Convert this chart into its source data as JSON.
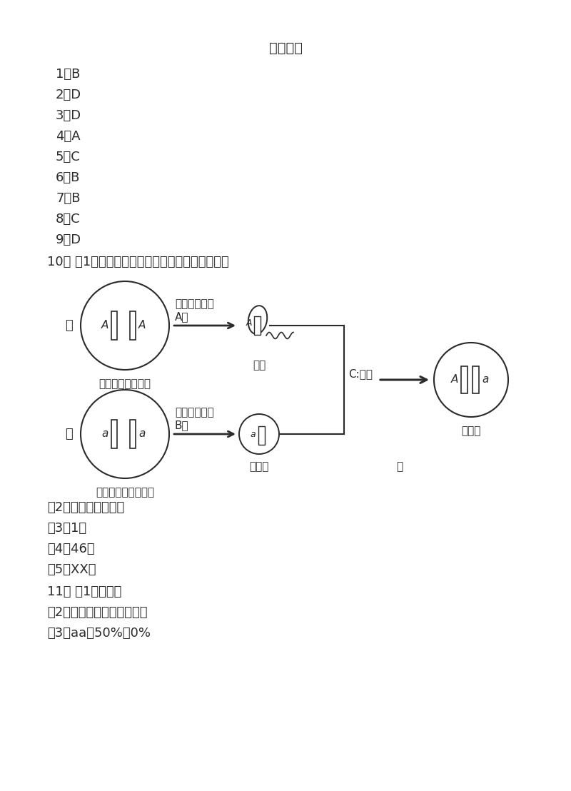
{
  "title": "参考答案",
  "answers_1_9": [
    "1．B",
    "2．D",
    "3．D",
    "4．A",
    "5．C",
    "6．B",
    "7．B",
    "8．C",
    "9．D"
  ],
  "q10_line1": "10． （1）细胞分裂形成；细胞分裂形成；受精；",
  "q10_lines_below": [
    "（2）染色体；基因；",
    "（3）1；",
    "（4）46；",
    "（5）XX；"
  ],
  "q11_lines": [
    "11． （1）变异；",
    "（2）相对性状；惯用右手；",
    "（3）aa；50%或0%"
  ],
  "label_fu": "父",
  "label_mu": "母",
  "label_father_cell": "能形成精子的细胞",
  "label_mother_cell": "能形成卵细胞的细胞",
  "label_sperm": "精子",
  "label_egg": "卯细胞",
  "label_fertilized": "受精卵",
  "label_divide_father": "细胞分裂形成",
  "label_divide_mother": "细胞分裂形成",
  "label_A_colon": "A：",
  "label_B_colon": "B：",
  "label_C_receive": "C:受精",
  "semicolon": "；",
  "bg_color": "#ffffff",
  "text_color": "#2a2a2a",
  "diagram_line_color": "#2a2a2a",
  "font_size": 13,
  "title_font_size": 14,
  "diagram_font_size": 11
}
